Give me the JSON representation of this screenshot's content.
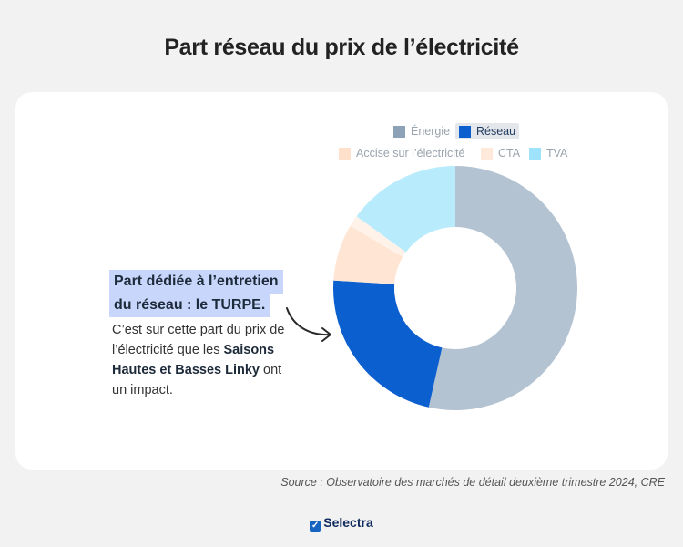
{
  "title": "Part réseau du prix de l’électricité",
  "chart_data": {
    "type": "pie",
    "donut": true,
    "title": "Part réseau du prix de l’électricité",
    "legend_position": "top-right",
    "series": [
      {
        "name": "Énergie",
        "value": 53.5,
        "color": "#b4c3d2"
      },
      {
        "name": "Réseau",
        "value": 22.5,
        "color": "#0c5fcf"
      },
      {
        "name": "Accise sur l’électricité",
        "value": 7.5,
        "color": "#ffe6d4"
      },
      {
        "name": "CTA",
        "value": 1.5,
        "color": "#fff2e8"
      },
      {
        "name": "TVA",
        "value": 15.0,
        "color": "#b8ebfc"
      }
    ],
    "highlighted_series": "Réseau"
  },
  "annotation": {
    "highlight_line1": "Part dédiée à l’entretien",
    "highlight_line2": "du réseau : le TURPE.",
    "desc_part1": "C’est sur cette part du prix de l’électricité que les ",
    "desc_bold": "Saisons Hautes et Basses Linky",
    "desc_part2": " ont un impact."
  },
  "source": "Source : Observatoire des marchés de détail deuxième trimestre 2024, CRE",
  "brand": "Selectra"
}
